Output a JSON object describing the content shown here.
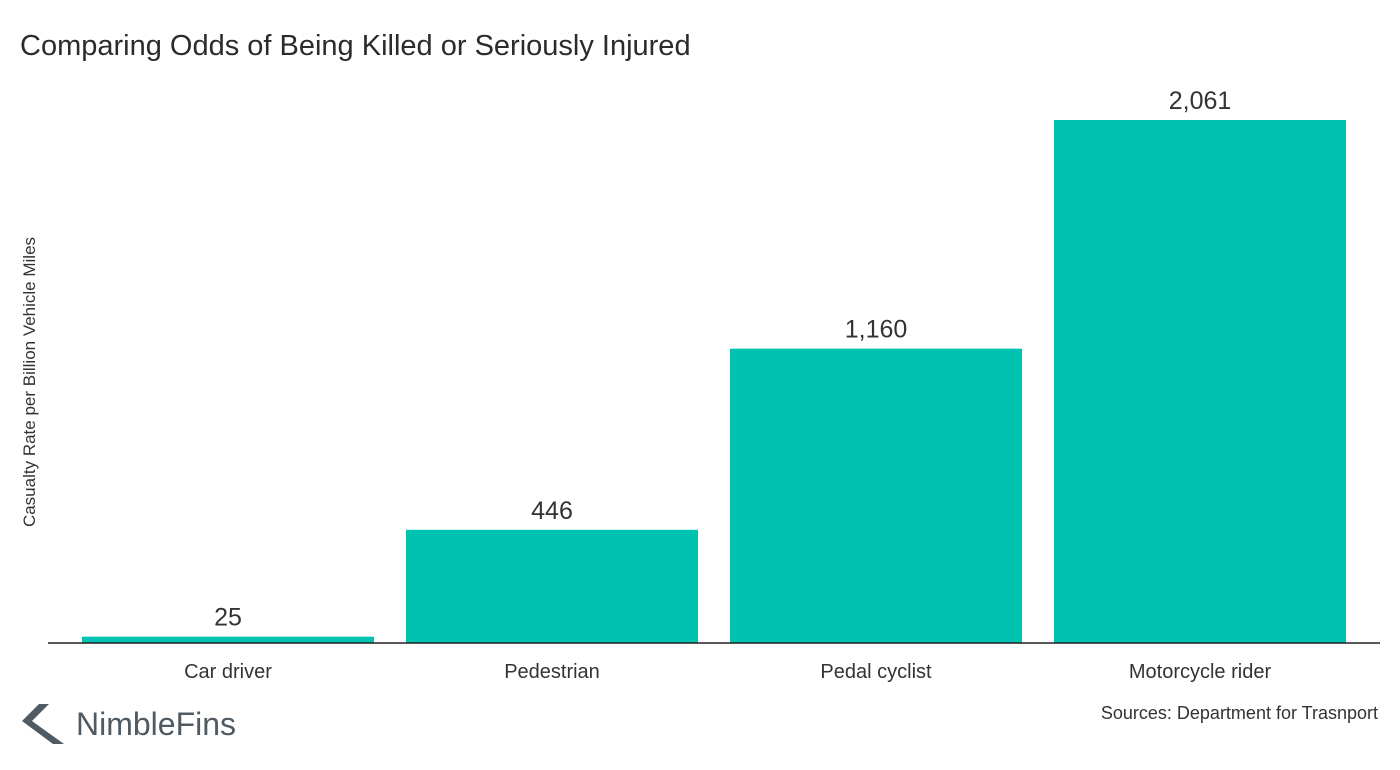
{
  "title": "Comparing Odds of Being Killed or Seriously Injured",
  "source": "Sources: Department for Trasnport",
  "brand": {
    "name": "NimbleFins",
    "icon": "chevron-left-logo-icon"
  },
  "colors": {
    "bar": "#00c2b0",
    "axis": "#222222",
    "text": "#333333",
    "brand": "#505a62"
  },
  "chart_data": {
    "type": "bar",
    "title": "Comparing Odds of Being Killed or Seriously Injured",
    "xlabel": "",
    "ylabel": "Casualty Rate per Billion Vehicle Miles",
    "categories": [
      "Car driver",
      "Pedestrian",
      "Pedal cyclist",
      "Motorcycle rider"
    ],
    "values": [
      25,
      446,
      1160,
      2061
    ],
    "value_labels": [
      "25",
      "446",
      "1,160",
      "2,061"
    ],
    "ylim": [
      0,
      2061
    ],
    "grid": false,
    "legend": "none"
  }
}
